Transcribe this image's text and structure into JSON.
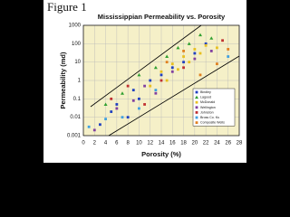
{
  "figure_label": "Figure 1",
  "chart_data": {
    "type": "scatter",
    "title": "Mississippian Permeability vs. Porosity",
    "x_label": "Porosity (%)",
    "y_label": "Permeability (md)",
    "xlim": [
      0,
      28
    ],
    "xticks": [
      0,
      2,
      4,
      6,
      8,
      10,
      12,
      14,
      16,
      18,
      20,
      22,
      24,
      26,
      28
    ],
    "ylim": [
      0.001,
      1000
    ],
    "yticks": [
      0.001,
      0.01,
      0.1,
      1,
      10,
      100,
      1000
    ],
    "log_y": true,
    "grid": true,
    "legend": "lower-right",
    "series": [
      {
        "name": "Bindley",
        "color": "#2040c0",
        "marker": "square",
        "x": [
          3,
          5,
          6,
          8,
          9,
          10,
          12,
          14,
          16,
          18,
          20,
          22
        ],
        "y": [
          0.004,
          0.02,
          0.05,
          0.01,
          0.3,
          0.1,
          1,
          2,
          5,
          10,
          30,
          100
        ]
      },
      {
        "name": "Lagood",
        "color": "#30a030",
        "marker": "triangle",
        "x": [
          4,
          7,
          10,
          13,
          15,
          17,
          19,
          21,
          23
        ],
        "y": [
          0.05,
          0.2,
          2,
          5,
          20,
          60,
          100,
          300,
          200
        ]
      },
      {
        "name": "McDonald",
        "color": "#e8c020",
        "marker": "square",
        "x": [
          12,
          14,
          15,
          16,
          17,
          18,
          19,
          20,
          21,
          22,
          24
        ],
        "y": [
          0.5,
          3,
          1,
          8,
          4,
          20,
          10,
          50,
          30,
          80,
          60
        ]
      },
      {
        "name": "Wellington",
        "color": "#8040a0",
        "marker": "square",
        "x": [
          2,
          6,
          9,
          11,
          13,
          16,
          20,
          23
        ],
        "y": [
          0.002,
          0.03,
          0.08,
          0.5,
          0.2,
          3,
          15,
          40
        ]
      },
      {
        "name": "Johnston",
        "color": "#c03030",
        "marker": "square",
        "x": [
          5,
          8,
          11,
          14,
          18,
          25
        ],
        "y": [
          0.1,
          0.5,
          0.05,
          1,
          5,
          150
        ]
      },
      {
        "name": "Bross Co. Ks",
        "color": "#40a0e0",
        "marker": "square",
        "x": [
          1,
          4,
          7,
          10,
          13,
          26
        ],
        "y": [
          0.003,
          0.008,
          0.01,
          0.03,
          0.3,
          20
        ]
      },
      {
        "name": "Composite Wells",
        "color": "#e08020",
        "marker": "square",
        "x": [
          15,
          18,
          21,
          24,
          26
        ],
        "y": [
          10,
          40,
          2,
          8,
          50
        ]
      }
    ]
  }
}
